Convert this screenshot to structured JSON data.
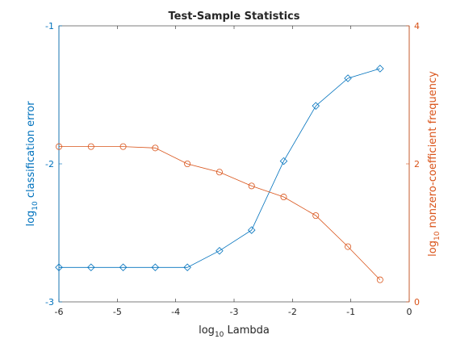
{
  "colors": {
    "left_axis": "#0072BD",
    "right_axis": "#D95319",
    "frame": "#262626"
  },
  "chart_data": {
    "type": "line",
    "title": "Test-Sample Statistics",
    "xlabel": {
      "base": "log",
      "sub": "10",
      "rest": " Lambda"
    },
    "ylabel_left": {
      "base": "log",
      "sub": "10",
      "rest": " classification error"
    },
    "ylabel_right": {
      "base": "log",
      "sub": "10",
      "rest": " nonzero-coefficient frequency"
    },
    "xlim": [
      -6,
      0
    ],
    "ylim_left": [
      -3,
      -1
    ],
    "ylim_right": [
      0,
      4
    ],
    "xticks": [
      -6,
      -5,
      -4,
      -3,
      -2,
      -1,
      0
    ],
    "yticks_left": [
      -3,
      -2,
      -1
    ],
    "yticks_right": [
      0,
      2,
      4
    ],
    "grid": false,
    "series": [
      {
        "axis": "left",
        "color": "#0072BD",
        "marker": "diamond",
        "x": [
          -6.0,
          -5.45,
          -4.9,
          -4.35,
          -3.8,
          -3.25,
          -2.7,
          -2.15,
          -1.6,
          -1.05,
          -0.5
        ],
        "y": [
          -2.75,
          -2.75,
          -2.75,
          -2.75,
          -2.75,
          -2.63,
          -2.48,
          -1.98,
          -1.58,
          -1.38,
          -1.31
        ]
      },
      {
        "axis": "right",
        "color": "#D95319",
        "marker": "circle",
        "x": [
          -6.0,
          -5.45,
          -4.9,
          -4.35,
          -3.8,
          -3.25,
          -2.7,
          -2.15,
          -1.6,
          -1.05,
          -0.5
        ],
        "y": [
          2.25,
          2.25,
          2.25,
          2.23,
          2.0,
          1.88,
          1.68,
          1.52,
          1.25,
          0.8,
          0.32
        ]
      }
    ]
  }
}
